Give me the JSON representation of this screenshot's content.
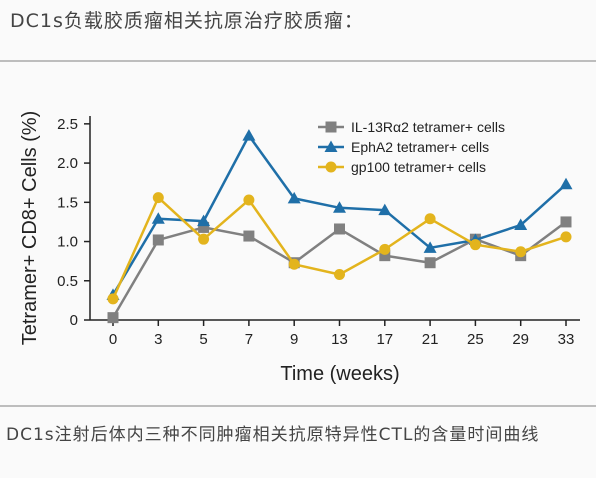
{
  "header": {
    "title": "DC1s负载胶质瘤相关抗原治疗胶质瘤："
  },
  "caption": "DC1s注射后体内三种不同肿瘤相关抗原特异性CTL的含量时间曲线",
  "chart_data": {
    "type": "line",
    "xlabel": "Time (weeks)",
    "ylabel": "Tetramer+ CD8+ Cells (%)",
    "categories": [
      "0",
      "3",
      "5",
      "7",
      "9",
      "13",
      "17",
      "21",
      "25",
      "29",
      "33"
    ],
    "y_ticks": [
      "0",
      "0.5",
      "1.0",
      "1.5",
      "2.0",
      "2.5"
    ],
    "ylim": [
      0,
      2.6
    ],
    "legend_position": "top-right",
    "series": [
      {
        "name": "IL-13Rα2 tetramer+ cells",
        "color": "#808080",
        "marker": "square",
        "values": [
          0.03,
          1.02,
          1.18,
          1.07,
          0.73,
          1.16,
          0.82,
          0.73,
          1.03,
          0.82,
          1.25
        ]
      },
      {
        "name": "EphA2 tetramer+ cells",
        "color": "#1f6fa8",
        "marker": "triangle",
        "values": [
          0.32,
          1.29,
          1.26,
          2.35,
          1.55,
          1.43,
          1.4,
          0.92,
          1.02,
          1.21,
          1.73
        ]
      },
      {
        "name": "gp100 tetramer+ cells",
        "color": "#e3b41d",
        "marker": "circle",
        "values": [
          0.27,
          1.56,
          1.03,
          1.53,
          0.71,
          0.58,
          0.9,
          1.29,
          0.96,
          0.87,
          1.06
        ]
      }
    ]
  }
}
